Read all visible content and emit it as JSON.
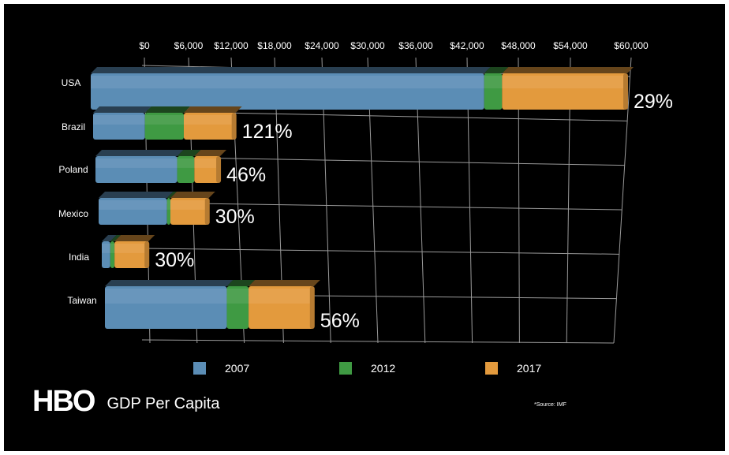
{
  "chart_data": {
    "type": "bar",
    "stacked": true,
    "orientation": "horizontal",
    "title": "GDP Per Capita",
    "brand": "HBO",
    "source": "*Source: IMF",
    "x_tick_labels": [
      "$0",
      "$6,000",
      "$12,000",
      "$18,000",
      "$24,000",
      "$30,000",
      "$36,000",
      "$42,000",
      "$48,000",
      "$54,000",
      "$60,000"
    ],
    "xlim": [
      0,
      60000
    ],
    "categories": [
      "USA",
      "Brazil",
      "Poland",
      "Mexico",
      "India",
      "Taiwan"
    ],
    "series": [
      {
        "name": "2007",
        "color": "#5b8db5",
        "values": [
          44000,
          6000,
          9500,
          8000,
          1000,
          14000
        ]
      },
      {
        "name": "2012",
        "color": "#3f9a43",
        "values": [
          2000,
          4500,
          2000,
          400,
          500,
          2500
        ]
      },
      {
        "name": "2017",
        "color": "#e39a3d",
        "values": [
          14000,
          6000,
          3000,
          4500,
          4000,
          7500
        ]
      }
    ],
    "growth_labels": [
      "29%",
      "121%",
      "46%",
      "30%",
      "30%",
      "56%"
    ],
    "grid": true,
    "legend_position": "bottom"
  }
}
